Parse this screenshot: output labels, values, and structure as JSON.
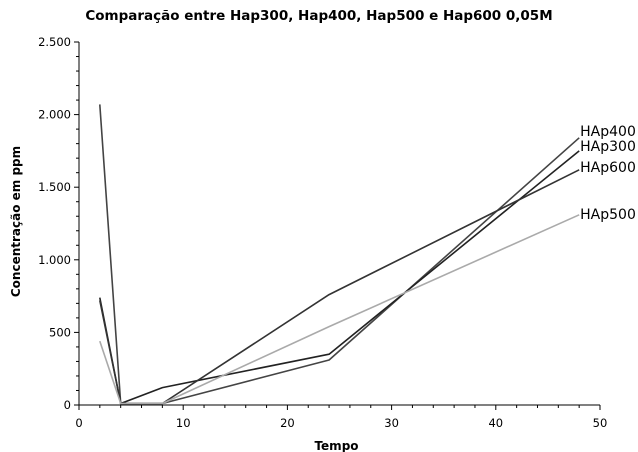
{
  "chart_data": {
    "type": "line",
    "title": "Comparação entre Hap300, Hap400, Hap500 e Hap600 0,05M",
    "xlabel": "Tempo",
    "ylabel": "Concentração em ppm",
    "xlim": [
      0,
      50
    ],
    "ylim": [
      0,
      2500
    ],
    "x_ticks": [
      0,
      10,
      20,
      30,
      40,
      50
    ],
    "x_tick_labels": [
      "0",
      "10",
      "20",
      "30",
      "40",
      "50"
    ],
    "y_ticks": [
      0,
      500,
      1000,
      1500,
      2000,
      2500
    ],
    "y_tick_labels": [
      "0",
      "500",
      "1.000",
      "1.500",
      "2.000",
      "2.500"
    ],
    "grid": false,
    "legend": "labels at line ends (right)",
    "series": [
      {
        "name": "HAp400",
        "color": "#444444",
        "x": [
          2,
          4,
          8,
          24,
          48
        ],
        "y": [
          2070,
          10,
          10,
          310,
          1840
        ]
      },
      {
        "name": "HAp300",
        "color": "#222222",
        "x": [
          2,
          4,
          8,
          24,
          48
        ],
        "y": [
          740,
          10,
          120,
          350,
          1750
        ]
      },
      {
        "name": "HAp600",
        "color": "#333333",
        "x": [
          2,
          4,
          8,
          24,
          48
        ],
        "y": [
          720,
          10,
          10,
          760,
          1620
        ]
      },
      {
        "name": "HAp500",
        "color": "#aaaaaa",
        "x": [
          2,
          4,
          8,
          24,
          48
        ],
        "y": [
          440,
          10,
          10,
          540,
          1310
        ]
      }
    ]
  }
}
